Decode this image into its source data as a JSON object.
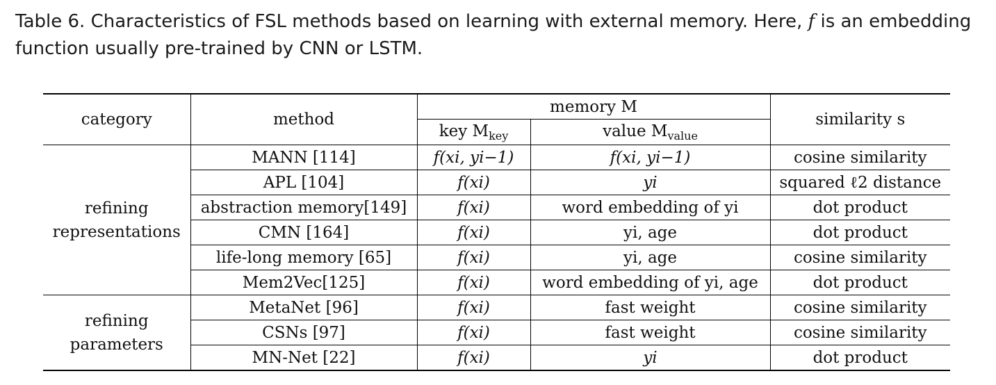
{
  "caption": {
    "prefix": "Table 6.  Characteristics of FSL methods based on learning with external memory. Here, ",
    "f_symbol": "f",
    "suffix": " is an embedding function usually pre-trained by CNN or LSTM."
  },
  "header": {
    "category": "category",
    "method": "method",
    "memory": "memory M",
    "key": "key M",
    "key_sub": "key",
    "value": "value M",
    "value_sub": "value",
    "similarity": "similarity s"
  },
  "groups": [
    {
      "label_line1": "refining",
      "label_line2": "representations"
    },
    {
      "label_line1": "refining",
      "label_line2": "parameters"
    }
  ],
  "rows": [
    {
      "method": "MANN [114]",
      "key": "f(xi, yi−1)",
      "value": "f(xi, yi−1)",
      "similarity": "cosine similarity"
    },
    {
      "method": "APL [104]",
      "key": "f(xi)",
      "value": "yi",
      "similarity": "squared ℓ2 distance"
    },
    {
      "method": "abstraction memory[149]",
      "key": "f(xi)",
      "value": "word embedding of yi",
      "similarity": "dot product"
    },
    {
      "method": "CMN [164]",
      "key": "f(xi)",
      "value": "yi, age",
      "similarity": "dot product"
    },
    {
      "method": "life-long memory [65]",
      "key": "f(xi)",
      "value": "yi, age",
      "similarity": "cosine similarity"
    },
    {
      "method": "Mem2Vec[125]",
      "key": "f(xi)",
      "value": "word embedding of yi, age",
      "similarity": "dot product"
    },
    {
      "method": "MetaNet [96]",
      "key": "f(xi)",
      "value": "fast weight",
      "similarity": "cosine similarity"
    },
    {
      "method": "CSNs [97]",
      "key": "f(xi)",
      "value": "fast weight",
      "similarity": "cosine similarity"
    },
    {
      "method": "MN-Net [22]",
      "key": "f(xi)",
      "value": "yi",
      "similarity": "dot product"
    }
  ]
}
